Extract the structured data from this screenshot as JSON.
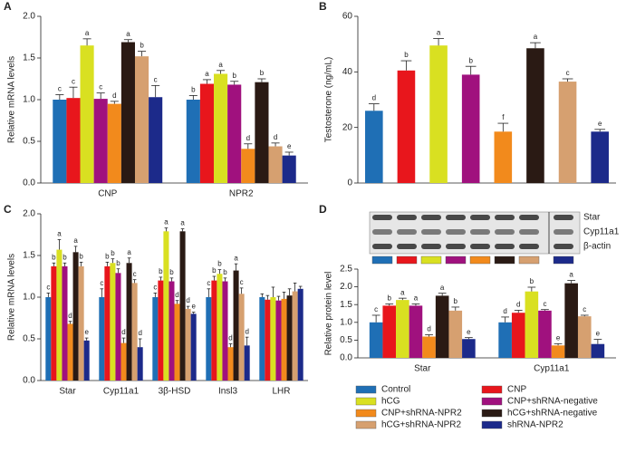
{
  "chart_data": [
    {
      "type": "bar",
      "panel": "A",
      "ylabel": "Relative mRNA levels",
      "categories": [
        "CNP",
        "NPR2"
      ],
      "ylim": [
        0,
        2
      ],
      "yticks": [
        {
          "value": 0,
          "label": "0.0"
        },
        0.5,
        {
          "value": 1,
          "label": "1.0"
        },
        1.5,
        {
          "value": 2,
          "label": "2.0"
        }
      ],
      "series": [
        {
          "values": [
            1.0,
            1.0
          ],
          "errors": [
            0.06,
            0.05
          ],
          "letters": [
            "c",
            "b"
          ]
        },
        {
          "values": [
            1.02,
            1.19
          ],
          "errors": [
            0.13,
            0.05
          ],
          "letters": [
            "c",
            "a"
          ]
        },
        {
          "values": [
            1.65,
            1.31
          ],
          "errors": [
            0.08,
            0.04
          ],
          "letters": [
            "a",
            "a"
          ]
        },
        {
          "values": [
            1.01,
            1.18
          ],
          "errors": [
            0.07,
            0.04
          ],
          "letters": [
            "c",
            "b"
          ]
        },
        {
          "values": [
            0.95,
            0.41
          ],
          "errors": [
            0.03,
            0.06
          ],
          "letters": [
            "d",
            "d"
          ]
        },
        {
          "values": [
            1.69,
            1.21
          ],
          "errors": [
            0.03,
            0.04
          ],
          "letters": [
            "a",
            "b"
          ]
        },
        {
          "values": [
            1.52,
            0.44
          ],
          "errors": [
            0.06,
            0.04
          ],
          "letters": [
            "b",
            "d"
          ]
        },
        {
          "values": [
            1.03,
            0.33
          ],
          "errors": [
            0.14,
            0.04
          ],
          "letters": [
            "c",
            "e"
          ]
        }
      ]
    },
    {
      "type": "bar",
      "panel": "B",
      "ylabel": "Testosterone (ng/mL)",
      "ylim": [
        0,
        60
      ],
      "yticks": [
        0,
        20,
        40,
        60
      ],
      "series": [
        {
          "values": [
            26
          ],
          "errors": [
            2.5
          ],
          "letters": [
            "d"
          ]
        },
        {
          "values": [
            40.5
          ],
          "errors": [
            3.5
          ],
          "letters": [
            "b"
          ]
        },
        {
          "values": [
            49.5
          ],
          "errors": [
            2.5
          ],
          "letters": [
            "a"
          ]
        },
        {
          "values": [
            39
          ],
          "errors": [
            3
          ],
          "letters": [
            "b"
          ]
        },
        {
          "values": [
            18.5
          ],
          "errors": [
            3
          ],
          "letters": [
            "f"
          ]
        },
        {
          "values": [
            48.5
          ],
          "errors": [
            2
          ],
          "letters": [
            "a"
          ]
        },
        {
          "values": [
            36.5
          ],
          "errors": [
            1
          ],
          "letters": [
            "c"
          ]
        },
        {
          "values": [
            18.5
          ],
          "errors": [
            0.8
          ],
          "letters": [
            "e"
          ]
        }
      ]
    },
    {
      "type": "bar",
      "panel": "C",
      "ylabel": "Relative mRNA levels",
      "categories": [
        "Star",
        "Cyp11a1",
        "3β-HSD",
        "Insl3",
        "LHR"
      ],
      "ylim": [
        0,
        2
      ],
      "yticks": [
        {
          "value": 0,
          "label": "0.0"
        },
        0.5,
        {
          "value": 1,
          "label": "1.0"
        },
        1.5,
        {
          "value": 2,
          "label": "2.0"
        }
      ],
      "series": [
        {
          "values": [
            1.0,
            1.0,
            1.0,
            1.0,
            1.0
          ],
          "errors": [
            0.05,
            0.1,
            0.05,
            0.1,
            0.04
          ],
          "letters": [
            "c",
            "c",
            "c",
            "c",
            null
          ]
        },
        {
          "values": [
            1.37,
            1.37,
            1.2,
            1.2,
            0.97
          ],
          "errors": [
            0.04,
            0.05,
            0.04,
            0.05,
            0.05
          ],
          "letters": [
            "b",
            "b",
            "b",
            "b",
            null
          ]
        },
        {
          "values": [
            1.57,
            1.41,
            1.79,
            1.28,
            1.0
          ],
          "errors": [
            0.12,
            0.05,
            0.04,
            0.05,
            0.12
          ],
          "letters": [
            "a",
            "b",
            "a",
            "b",
            null
          ]
        },
        {
          "values": [
            1.37,
            1.29,
            1.19,
            1.19,
            0.96
          ],
          "errors": [
            0.04,
            0.05,
            0.04,
            0.04,
            0.05
          ],
          "letters": [
            "b",
            "b",
            "b",
            "b",
            null
          ]
        },
        {
          "values": [
            0.68,
            0.45,
            0.92,
            0.4,
            0.98
          ],
          "errors": [
            0.03,
            0.06,
            0.04,
            0.04,
            0.08
          ],
          "letters": [
            "d",
            "d",
            "d",
            "d",
            null
          ]
        },
        {
          "values": [
            1.54,
            1.41,
            1.79,
            1.32,
            1.02
          ],
          "errors": [
            0.07,
            0.06,
            0.03,
            0.08,
            0.08
          ],
          "letters": [
            "a",
            "a",
            "a",
            "a",
            null
          ]
        },
        {
          "values": [
            1.37,
            1.17,
            0.86,
            1.04,
            1.07
          ],
          "errors": [
            0.05,
            0.04,
            0.03,
            0.07,
            0.1
          ],
          "letters": [
            "b",
            "c",
            "d",
            "c",
            null
          ]
        },
        {
          "values": [
            0.48,
            0.4,
            0.8,
            0.42,
            1.1
          ],
          "errors": [
            0.03,
            0.1,
            0.02,
            0.1,
            0.03
          ],
          "letters": [
            "e",
            "d",
            "e",
            "d",
            null
          ]
        }
      ]
    },
    {
      "type": "bar",
      "panel": "D",
      "ylabel": "Relative protein level",
      "categories": [
        "Star",
        "Cyp11a1"
      ],
      "blot_labels": [
        "Star",
        "Cyp11a1",
        "β-actin"
      ],
      "ylim": [
        0,
        2.5
      ],
      "yticks": [
        {
          "value": 0,
          "label": "0.0"
        },
        0.5,
        {
          "value": 1,
          "label": "1.0"
        },
        1.5,
        {
          "value": 2,
          "label": "2.0"
        },
        2.5
      ],
      "series": [
        {
          "values": [
            1.0,
            1.0
          ],
          "errors": [
            0.2,
            0.15
          ],
          "letters": [
            "c",
            "d"
          ]
        },
        {
          "values": [
            1.47,
            1.27
          ],
          "errors": [
            0.05,
            0.07
          ],
          "letters": [
            "b",
            "d"
          ]
        },
        {
          "values": [
            1.63,
            1.87
          ],
          "errors": [
            0.05,
            0.12
          ],
          "letters": [
            "a",
            "b"
          ]
        },
        {
          "values": [
            1.47,
            1.33
          ],
          "errors": [
            0.05,
            0.03
          ],
          "letters": [
            "a",
            "c"
          ]
        },
        {
          "values": [
            0.6,
            0.35
          ],
          "errors": [
            0.05,
            0.05
          ],
          "letters": [
            "d",
            "e"
          ]
        },
        {
          "values": [
            1.75,
            2.1
          ],
          "errors": [
            0.07,
            0.08
          ],
          "letters": [
            "a",
            "a"
          ]
        },
        {
          "values": [
            1.33,
            1.17
          ],
          "errors": [
            0.1,
            0.03
          ],
          "letters": [
            "b",
            "c"
          ]
        },
        {
          "values": [
            0.53,
            0.39
          ],
          "errors": [
            0.04,
            0.13
          ],
          "letters": [
            "e",
            "e"
          ]
        }
      ]
    }
  ],
  "legend": [
    {
      "name": "Control",
      "color": "#1f6fb5"
    },
    {
      "name": "CNP",
      "color": "#e8161c"
    },
    {
      "name": "hCG",
      "color": "#d9e021"
    },
    {
      "name": "CNP+shRNA-negative",
      "color": "#a0117e"
    },
    {
      "name": "CNP+shRNA-NPR2",
      "color": "#f28a1c"
    },
    {
      "name": "hCG+shRNA-negative",
      "color": "#2a1a14"
    },
    {
      "name": "hCG+shRNA-NPR2",
      "color": "#d6a070"
    },
    {
      "name": "shRNA-NPR2",
      "color": "#1c2a8a"
    }
  ]
}
